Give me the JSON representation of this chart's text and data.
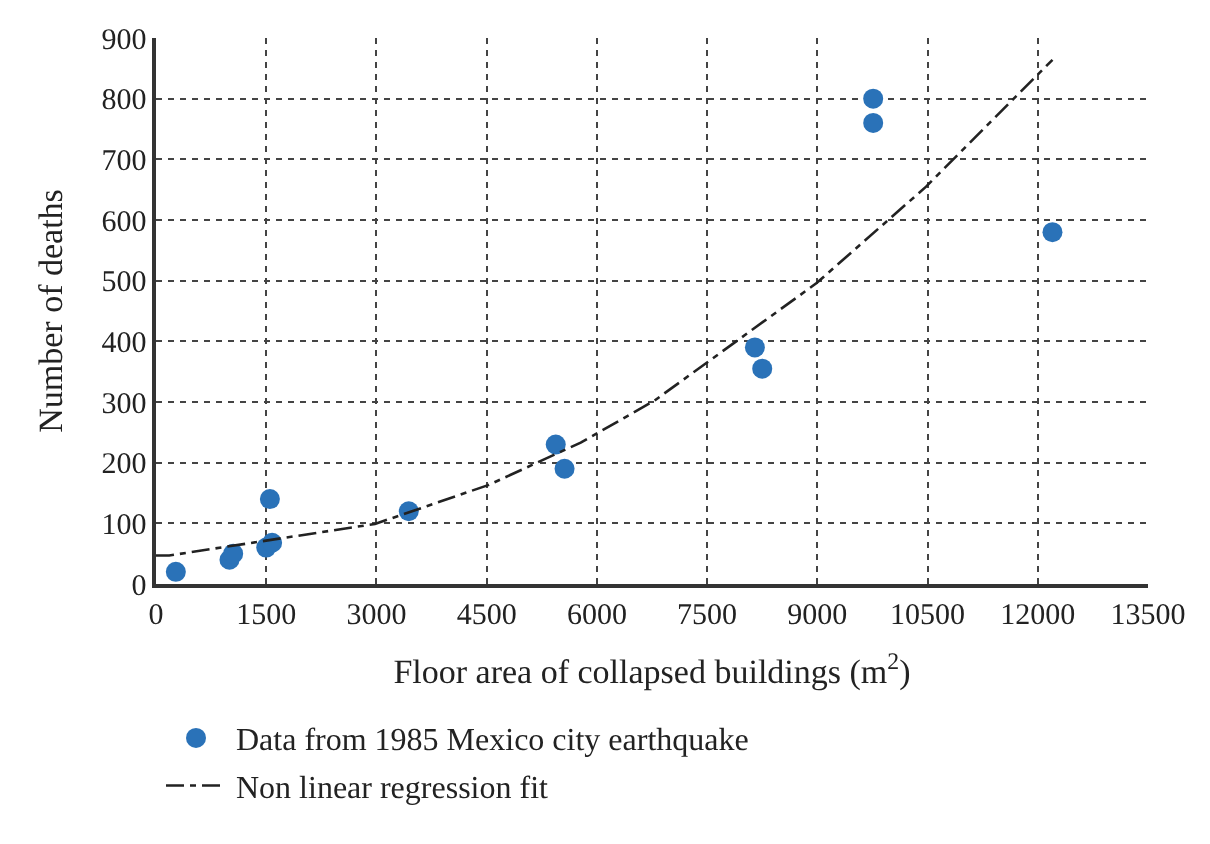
{
  "chart_data": {
    "type": "scatter",
    "xlabel": "Floor area of collapsed buildings (m$^{2}$)",
    "ylabel": "Number of deaths",
    "xlim": [
      0,
      13500
    ],
    "xticks": [
      0,
      1500,
      3000,
      4500,
      6000,
      7500,
      9000,
      10500,
      12000,
      13500
    ],
    "ylim": [
      0,
      900
    ],
    "yticks": [
      0,
      100,
      200,
      300,
      400,
      500,
      600,
      700,
      800,
      900
    ],
    "grid": true,
    "legend": "bottom",
    "marker": "circle",
    "series": [
      {
        "name": "Data from 1985 Mexico city earthquake",
        "color": "#2a72b8",
        "x": [
          270,
          1000,
          1050,
          1500,
          1550,
          1580,
          3440,
          5440,
          5560,
          8150,
          8250,
          9760,
          9760,
          12200
        ],
        "values": [
          20,
          40,
          50,
          60,
          140,
          68,
          120,
          230,
          190,
          390,
          355,
          800,
          760,
          580
        ]
      },
      {
        "name": "Non linear regression fit",
        "type": "line",
        "line_style": "dashdot",
        "marker": "none",
        "color": "#222222",
        "x": [
          0,
          180,
          2980,
          4520,
          5780,
          6780,
          8990,
          10480,
          12200
        ],
        "values": [
          47,
          47,
          99,
          163,
          233,
          302,
          496,
          655,
          864
        ]
      }
    ]
  }
}
